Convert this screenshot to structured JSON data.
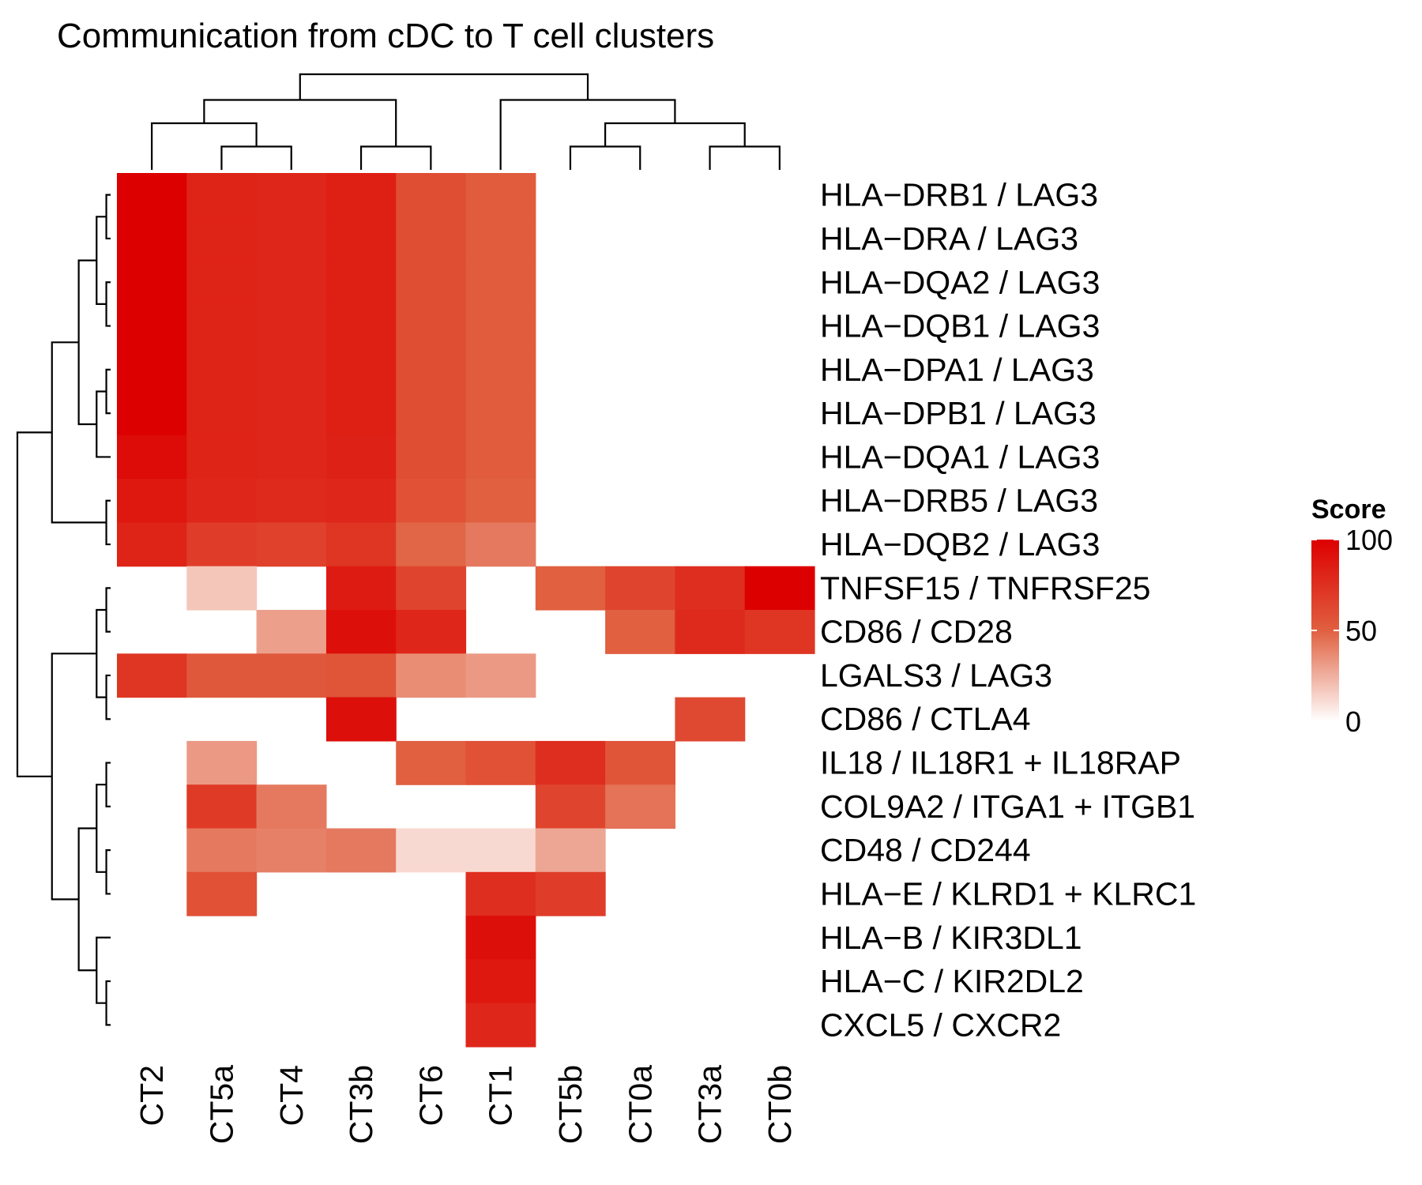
{
  "chart_data": {
    "type": "heatmap",
    "title": "Communication from cDC to T cell clusters",
    "columns": [
      "CT2",
      "CT5a",
      "CT4",
      "CT3b",
      "CT6",
      "CT1",
      "CT5b",
      "CT0a",
      "CT3a",
      "CT0b"
    ],
    "rows": [
      "HLA−DRB1 / LAG3",
      "HLA−DRA / LAG3",
      "HLA−DQA2 / LAG3",
      "HLA−DQB1 / LAG3",
      "HLA−DPA1 / LAG3",
      "HLA−DPB1 / LAG3",
      "HLA−DQA1 / LAG3",
      "HLA−DRB5 / LAG3",
      "HLA−DQB2 / LAG3",
      "TNFSF15 / TNFRSF25",
      "CD86 / CD28",
      "LGALS3 / LAG3",
      "CD86 / CTLA4",
      "IL18 / IL18R1 + IL18RAP",
      "COL9A2 / ITGA1 + ITGB1",
      "CD48 / CD244",
      "HLA−E / KLRD1 + KLRC1",
      "HLA−B / KIR3DL1",
      "HLA−C / KIR2DL2",
      "CXCL5 / CXCR2"
    ],
    "values": [
      [
        100,
        82,
        80,
        84,
        60,
        52,
        null,
        null,
        null,
        null
      ],
      [
        100,
        82,
        80,
        84,
        60,
        52,
        null,
        null,
        null,
        null
      ],
      [
        100,
        82,
        80,
        84,
        60,
        52,
        null,
        null,
        null,
        null
      ],
      [
        100,
        82,
        80,
        84,
        60,
        52,
        null,
        null,
        null,
        null
      ],
      [
        100,
        82,
        80,
        84,
        60,
        52,
        null,
        null,
        null,
        null
      ],
      [
        100,
        82,
        80,
        84,
        60,
        52,
        null,
        null,
        null,
        null
      ],
      [
        94,
        82,
        80,
        83,
        60,
        52,
        null,
        null,
        null,
        null
      ],
      [
        88,
        80,
        78,
        80,
        58,
        50,
        null,
        null,
        null,
        null
      ],
      [
        82,
        68,
        66,
        72,
        48,
        42,
        null,
        null,
        null,
        null
      ],
      [
        null,
        18,
        null,
        86,
        64,
        null,
        50,
        64,
        76,
        100
      ],
      [
        null,
        null,
        30,
        92,
        80,
        null,
        null,
        50,
        78,
        72
      ],
      [
        72,
        54,
        54,
        56,
        36,
        32,
        null,
        null,
        null,
        null
      ],
      [
        null,
        null,
        null,
        92,
        null,
        null,
        null,
        null,
        62,
        null
      ],
      [
        null,
        32,
        null,
        null,
        50,
        58,
        76,
        56,
        null,
        null
      ],
      [
        null,
        70,
        42,
        null,
        null,
        null,
        64,
        44,
        null,
        null
      ],
      [
        null,
        42,
        40,
        42,
        12,
        12,
        28,
        null,
        null,
        null
      ],
      [
        null,
        58,
        null,
        null,
        null,
        76,
        68,
        null,
        null,
        null
      ],
      [
        null,
        null,
        null,
        null,
        null,
        92,
        null,
        null,
        null,
        null
      ],
      [
        null,
        null,
        null,
        null,
        null,
        88,
        null,
        null,
        null,
        null
      ],
      [
        null,
        null,
        null,
        null,
        null,
        80,
        null,
        null,
        null,
        null
      ]
    ],
    "legend": {
      "title": "Score",
      "ticks": [
        0,
        50,
        100
      ],
      "range": [
        0,
        100
      ],
      "colors": [
        "#ffffff",
        "#e06040",
        "#dd0000"
      ]
    },
    "column_dendrogram": true,
    "row_dendrogram": true,
    "grid": false
  }
}
